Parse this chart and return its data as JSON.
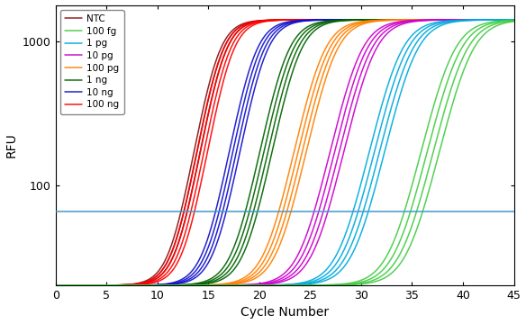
{
  "series": [
    {
      "label": "NTC",
      "color": "#8B1010",
      "midpoint": 16.0,
      "n_curves": 3,
      "spread": 0.3,
      "k": 1.0
    },
    {
      "label": "100 ng",
      "color": "#FF0000",
      "midpoint": 16.5,
      "n_curves": 4,
      "spread": 0.35,
      "k": 1.0
    },
    {
      "label": "10 ng",
      "color": "#1010CC",
      "midpoint": 19.8,
      "n_curves": 4,
      "spread": 0.35,
      "k": 0.95
    },
    {
      "label": "1 ng",
      "color": "#006400",
      "midpoint": 23.0,
      "n_curves": 4,
      "spread": 0.4,
      "k": 0.9
    },
    {
      "label": "100 pg",
      "color": "#FF8000",
      "midpoint": 26.5,
      "n_curves": 4,
      "spread": 0.4,
      "k": 0.85
    },
    {
      "label": "10 pg",
      "color": "#CC00CC",
      "midpoint": 30.2,
      "n_curves": 4,
      "spread": 0.45,
      "k": 0.82
    },
    {
      "label": "1 pg",
      "color": "#00AADD",
      "midpoint": 34.2,
      "n_curves": 4,
      "spread": 0.5,
      "k": 0.8
    },
    {
      "label": "100 fg",
      "color": "#44CC44",
      "midpoint": 39.5,
      "n_curves": 4,
      "spread": 0.6,
      "k": 0.78
    }
  ],
  "xmin": 0,
  "xmax": 45,
  "ymin": 20,
  "ymax": 1800,
  "L": 1400,
  "baseline": 20,
  "threshold_y": 65,
  "threshold_color": "#4499CC",
  "xlabel": "Cycle Number",
  "ylabel": "RFU",
  "background_color": "#ffffff",
  "legend_order": [
    "NTC",
    "100 fg",
    "1 pg",
    "10 pg",
    "100 pg",
    "1 ng",
    "10 ng",
    "100 ng"
  ]
}
